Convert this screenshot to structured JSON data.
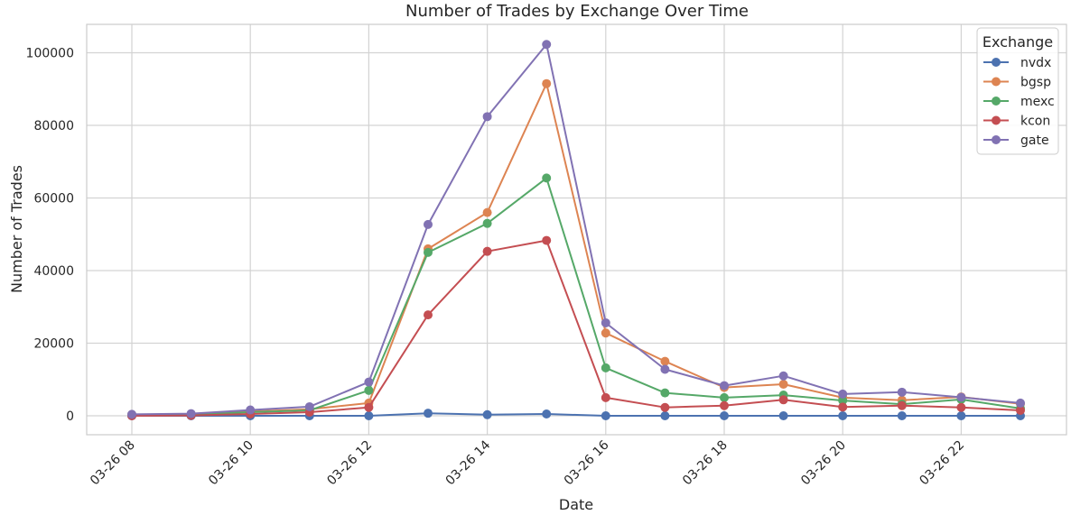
{
  "chart_data": {
    "type": "line",
    "title": "Number of Trades by Exchange Over Time",
    "xlabel": "Date",
    "ylabel": "Number of Trades",
    "x": [
      "03-26 08",
      "03-26 09",
      "03-26 10",
      "03-26 11",
      "03-26 12",
      "03-26 13",
      "03-26 14",
      "03-26 15",
      "03-26 16",
      "03-26 17",
      "03-26 18",
      "03-26 19",
      "03-26 20",
      "03-26 21",
      "03-26 22",
      "03-26 23"
    ],
    "x_ticks": [
      "03-26 08",
      "03-26 10",
      "03-26 12",
      "03-26 14",
      "03-26 16",
      "03-26 18",
      "03-26 20",
      "03-26 22"
    ],
    "ylim": [
      -5000,
      107000
    ],
    "y_ticks": [
      0,
      20000,
      40000,
      60000,
      80000,
      100000
    ],
    "grid": true,
    "legend": {
      "title": "Exchange",
      "position": "top-right"
    },
    "series": [
      {
        "name": "nvdx",
        "color": "#4c72b0",
        "values": [
          0,
          0,
          0,
          0,
          0,
          700,
          300,
          500,
          0,
          0,
          0,
          0,
          0,
          0,
          0,
          0
        ]
      },
      {
        "name": "bgsp",
        "color": "#dd8452",
        "values": [
          300,
          400,
          1200,
          1800,
          3500,
          46000,
          56000,
          91500,
          22800,
          15000,
          7800,
          8700,
          5000,
          4300,
          5200,
          3300
        ]
      },
      {
        "name": "mexc",
        "color": "#55a868",
        "values": [
          200,
          300,
          1000,
          1500,
          7000,
          45000,
          53000,
          65500,
          13200,
          6300,
          5000,
          5700,
          4200,
          3200,
          4500,
          2000
        ]
      },
      {
        "name": "kcon",
        "color": "#c44e52",
        "values": [
          0,
          100,
          500,
          1000,
          2300,
          27800,
          45300,
          48300,
          5000,
          2300,
          2800,
          4400,
          2400,
          2800,
          2300,
          1500
        ]
      },
      {
        "name": "gate",
        "color": "#8172b3",
        "values": [
          400,
          600,
          1600,
          2500,
          9300,
          52700,
          82400,
          102300,
          25600,
          12800,
          8300,
          11000,
          6000,
          6500,
          5100,
          3500
        ]
      }
    ]
  }
}
